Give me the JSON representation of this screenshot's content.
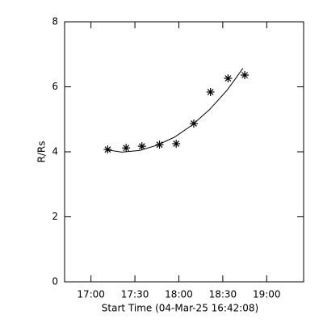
{
  "chart_data": {
    "type": "scatter",
    "y_label": "R/Rs",
    "x_label": "Start Time (04-Mar-25 16:42:08)",
    "x": [
      17.19,
      17.4,
      17.58,
      17.78,
      17.97,
      18.17,
      18.36,
      18.56,
      18.75
    ],
    "values": [
      4.07,
      4.12,
      4.17,
      4.22,
      4.25,
      4.87,
      5.84,
      6.26,
      6.36
    ],
    "color": "#000000",
    "fit": {
      "x": [
        17.16,
        17.35,
        17.55,
        17.75,
        17.95,
        18.15,
        18.35,
        18.55,
        18.73
      ],
      "values": [
        4.07,
        3.99,
        4.04,
        4.2,
        4.45,
        4.82,
        5.3,
        5.9,
        6.57
      ]
    },
    "xlim": [
      16.7,
      19.42
    ],
    "xticks": [
      {
        "value": 17,
        "label": "17:00"
      },
      {
        "value": 17.5,
        "label": "17:30"
      },
      {
        "value": 18,
        "label": "18:00"
      },
      {
        "value": 18.5,
        "label": "18:30"
      },
      {
        "value": 19,
        "label": "19:00"
      }
    ],
    "ylim": [
      0,
      8
    ],
    "yticks": [
      0,
      2,
      4,
      6,
      8
    ]
  }
}
